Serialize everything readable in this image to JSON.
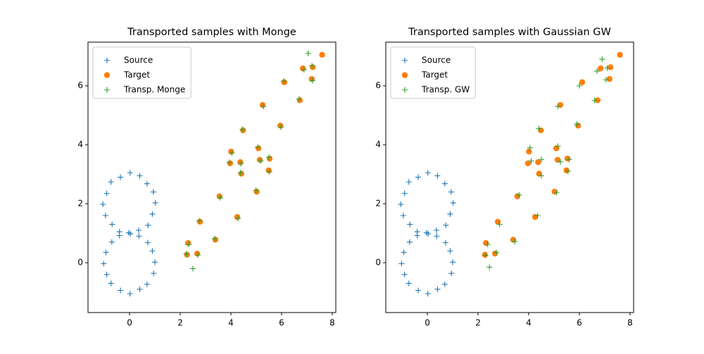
{
  "chart_data": [
    {
      "type": "scatter",
      "title": "Transported samples with Monge",
      "xlim": [
        -1.64,
        8.14
      ],
      "ylim": [
        -1.69,
        7.48
      ],
      "xticks": [
        0,
        2,
        4,
        6,
        8
      ],
      "yticks": [
        0,
        2,
        4,
        6
      ],
      "legend": "upper left",
      "series": [
        {
          "name": "Source",
          "color": "#1f77b4",
          "marker": "plus",
          "x": [
            1.02,
            0.94,
            0.69,
            0.4,
            0.02,
            -0.36,
            -0.73,
            -0.9,
            -1.05,
            -0.95,
            -0.69,
            -0.4,
            0.03,
            0.36,
            0.73,
            0.9,
            1.0,
            0.9,
            0.72,
            0.37,
            -0.03,
            -0.4,
            -0.7,
            -0.93,
            -1.02,
            -0.9,
            -0.73,
            -0.36,
            0.02,
            0.4,
            0.69,
            0.95
          ],
          "y": [
            2.03,
            2.4,
            2.68,
            2.95,
            3.05,
            2.9,
            2.74,
            2.35,
            1.98,
            1.6,
            1.3,
            1.05,
            0.98,
            1.1,
            1.27,
            1.65,
            0.02,
            0.4,
            0.68,
            0.9,
            1.02,
            0.92,
            0.7,
            0.35,
            -0.03,
            -0.4,
            -0.7,
            -0.94,
            -1.05,
            -0.9,
            -0.73,
            -0.36
          ]
        },
        {
          "name": "Target",
          "color": "#ff7f0e",
          "marker": "circle",
          "x": [
            5.53,
            5.14,
            4.41,
            3.55,
            2.78,
            2.31,
            2.27,
            2.67,
            3.39,
            4.25,
            5.02,
            5.49,
            7.23,
            6.84,
            6.11,
            5.25,
            4.48,
            4.01,
            3.97,
            4.37,
            5.09,
            5.95,
            6.72,
            7.19,
            7.6
          ],
          "y": [
            3.53,
            3.49,
            3.02,
            2.25,
            1.39,
            0.67,
            0.27,
            0.31,
            0.78,
            1.55,
            2.41,
            3.13,
            6.63,
            6.59,
            6.12,
            5.35,
            4.49,
            3.77,
            3.37,
            3.41,
            3.88,
            4.65,
            5.51,
            6.23,
            7.05
          ]
        },
        {
          "name": "Transp. Monge",
          "color": "#2ca02c",
          "marker": "plus",
          "x": [
            5.5,
            5.18,
            4.38,
            3.58,
            2.75,
            2.34,
            2.24,
            2.7,
            3.36,
            4.28,
            4.99,
            5.52,
            7.2,
            6.88,
            6.08,
            5.28,
            4.45,
            4.04,
            3.94,
            4.4,
            5.06,
            5.98,
            6.69,
            7.22,
            7.05,
            2.5
          ],
          "y": [
            3.58,
            3.45,
            3.05,
            2.2,
            1.42,
            0.62,
            0.3,
            0.26,
            0.82,
            1.5,
            2.45,
            3.08,
            6.68,
            6.55,
            6.16,
            5.3,
            4.52,
            3.72,
            3.4,
            3.36,
            3.92,
            4.6,
            5.55,
            6.18,
            7.1,
            -0.2
          ]
        }
      ]
    },
    {
      "type": "scatter",
      "title": "Transported samples with Gaussian GW",
      "xlim": [
        -1.64,
        8.14
      ],
      "ylim": [
        -1.69,
        7.48
      ],
      "xticks": [
        0,
        2,
        4,
        6,
        8
      ],
      "yticks": [
        0,
        2,
        4,
        6
      ],
      "legend": "upper left",
      "series": [
        {
          "name": "Source",
          "color": "#1f77b4",
          "marker": "plus",
          "x": [
            1.02,
            0.94,
            0.69,
            0.4,
            0.02,
            -0.36,
            -0.73,
            -0.9,
            -1.05,
            -0.95,
            -0.69,
            -0.4,
            0.03,
            0.36,
            0.73,
            0.9,
            1.0,
            0.9,
            0.72,
            0.37,
            -0.03,
            -0.4,
            -0.7,
            -0.93,
            -1.02,
            -0.9,
            -0.73,
            -0.36,
            0.02,
            0.4,
            0.69,
            0.95
          ],
          "y": [
            2.03,
            2.4,
            2.68,
            2.95,
            3.05,
            2.9,
            2.74,
            2.35,
            1.98,
            1.6,
            1.3,
            1.05,
            0.98,
            1.1,
            1.27,
            1.65,
            0.02,
            0.4,
            0.68,
            0.9,
            1.02,
            0.92,
            0.7,
            0.35,
            -0.03,
            -0.4,
            -0.7,
            -0.94,
            -1.05,
            -0.9,
            -0.73,
            -0.36
          ]
        },
        {
          "name": "Target",
          "color": "#ff7f0e",
          "marker": "circle",
          "x": [
            5.53,
            5.14,
            4.41,
            3.55,
            2.78,
            2.31,
            2.27,
            2.67,
            3.39,
            4.25,
            5.02,
            5.49,
            7.23,
            6.84,
            6.11,
            5.25,
            4.48,
            4.01,
            3.97,
            4.37,
            5.09,
            5.95,
            6.72,
            7.19,
            7.6
          ],
          "y": [
            3.53,
            3.49,
            3.02,
            2.25,
            1.39,
            0.67,
            0.27,
            0.31,
            0.78,
            1.55,
            2.41,
            3.13,
            6.63,
            6.59,
            6.12,
            5.35,
            4.49,
            3.77,
            3.37,
            3.41,
            3.88,
            4.65,
            5.51,
            6.23,
            7.05
          ]
        },
        {
          "name": "Transp. GW",
          "color": "#2ca02c",
          "marker": "plus",
          "x": [
            5.6,
            5.25,
            4.5,
            3.62,
            2.85,
            2.38,
            2.3,
            2.72,
            3.45,
            4.35,
            5.1,
            5.55,
            7.1,
            6.7,
            6.0,
            5.15,
            4.4,
            4.05,
            4.1,
            4.5,
            5.15,
            5.9,
            6.6,
            7.05,
            6.9,
            2.45
          ],
          "y": [
            3.5,
            3.42,
            2.95,
            2.3,
            1.3,
            0.62,
            0.25,
            0.35,
            0.72,
            1.6,
            2.38,
            3.1,
            6.6,
            6.5,
            6.0,
            5.3,
            4.55,
            3.9,
            3.45,
            3.5,
            3.95,
            4.7,
            5.5,
            6.2,
            6.9,
            -0.15
          ]
        }
      ]
    }
  ]
}
